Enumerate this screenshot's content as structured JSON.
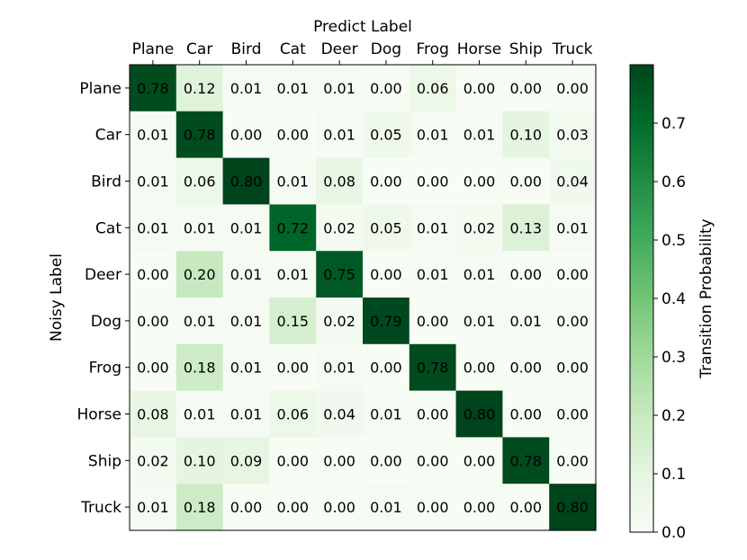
{
  "chart_data": {
    "type": "heatmap",
    "title": "",
    "xlabel": "Predict Label",
    "ylabel": "Noisy Label",
    "x_categories": [
      "Plane",
      "Car",
      "Bird",
      "Cat",
      "Deer",
      "Dog",
      "Frog",
      "Horse",
      "Ship",
      "Truck"
    ],
    "y_categories": [
      "Plane",
      "Car",
      "Bird",
      "Cat",
      "Deer",
      "Dog",
      "Frog",
      "Horse",
      "Ship",
      "Truck"
    ],
    "values": [
      [
        "0.78",
        "0.12",
        "0.01",
        "0.01",
        "0.01",
        "0.00",
        "0.06",
        "0.00",
        "0.00",
        "0.00"
      ],
      [
        "0.01",
        "0.78",
        "0.00",
        "0.00",
        "0.01",
        "0.05",
        "0.01",
        "0.01",
        "0.10",
        "0.03"
      ],
      [
        "0.01",
        "0.06",
        "0.80",
        "0.01",
        "0.08",
        "0.00",
        "0.00",
        "0.00",
        "0.00",
        "0.04"
      ],
      [
        "0.01",
        "0.01",
        "0.01",
        "0.72",
        "0.02",
        "0.05",
        "0.01",
        "0.02",
        "0.13",
        "0.01"
      ],
      [
        "0.00",
        "0.20",
        "0.01",
        "0.01",
        "0.75",
        "0.00",
        "0.01",
        "0.01",
        "0.00",
        "0.00"
      ],
      [
        "0.00",
        "0.01",
        "0.01",
        "0.15",
        "0.02",
        "0.79",
        "0.00",
        "0.01",
        "0.01",
        "0.00"
      ],
      [
        "0.00",
        "0.18",
        "0.01",
        "0.00",
        "0.01",
        "0.00",
        "0.78",
        "0.00",
        "0.00",
        "0.00"
      ],
      [
        "0.08",
        "0.01",
        "0.01",
        "0.06",
        "0.04",
        "0.01",
        "0.00",
        "0.80",
        "0.00",
        "0.00"
      ],
      [
        "0.02",
        "0.10",
        "0.09",
        "0.00",
        "0.00",
        "0.00",
        "0.00",
        "0.00",
        "0.78",
        "0.00"
      ],
      [
        "0.01",
        "0.18",
        "0.00",
        "0.00",
        "0.00",
        "0.01",
        "0.00",
        "0.00",
        "0.00",
        "0.80"
      ]
    ],
    "colormap": "Greens",
    "colormap_stops": [
      "#f7fcf5",
      "#e5f5e0",
      "#c7e9c0",
      "#a1d99b",
      "#74c476",
      "#41ab5d",
      "#238b45",
      "#006d2c",
      "#00441b"
    ],
    "color_range": [
      0,
      0.8
    ],
    "colorbar": {
      "label": "Transition Probability",
      "ticks": [
        "0.0",
        "0.1",
        "0.2",
        "0.3",
        "0.4",
        "0.5",
        "0.6",
        "0.7"
      ],
      "placement": "right"
    },
    "x_axis_position": "top",
    "grid": false
  }
}
